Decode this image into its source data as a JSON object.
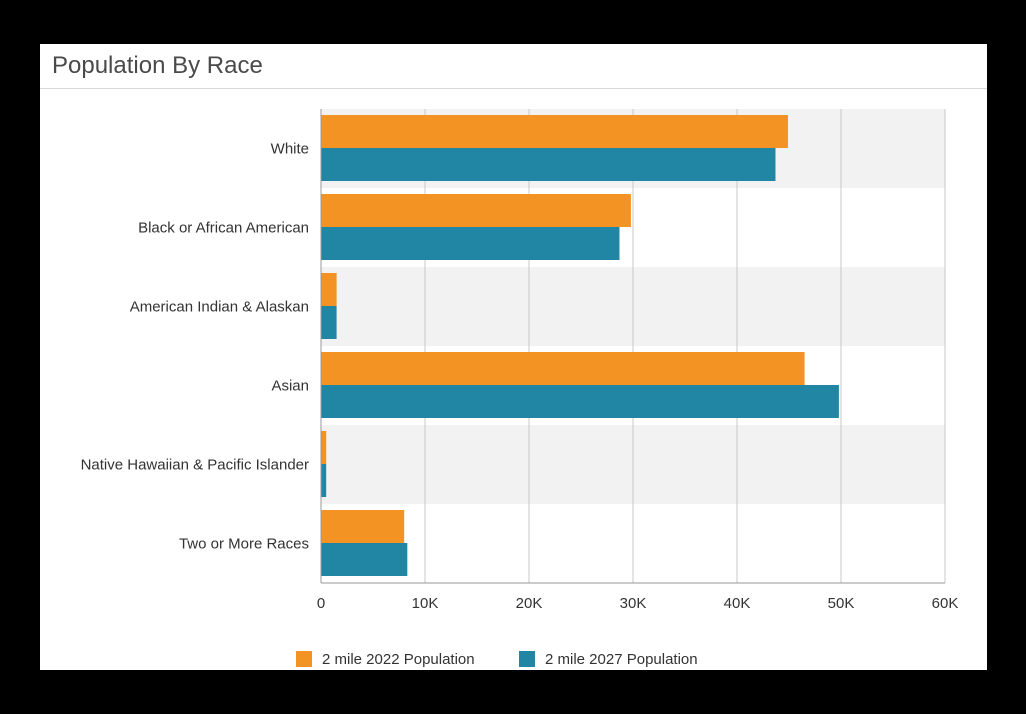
{
  "panel": {
    "title": "Population By Race"
  },
  "colors": {
    "series_2022": "#f39324",
    "series_2027": "#2186a4",
    "band": "#f2f2f2",
    "grid": "#c8c8c8",
    "axis": "#999999"
  },
  "chart_data": {
    "type": "bar",
    "orientation": "horizontal",
    "categories": [
      "White",
      "Black or African American",
      "American Indian & Alaskan",
      "Asian",
      "Native Hawaiian & Pacific Islander",
      "Two or More Races"
    ],
    "series": [
      {
        "name": "2 mile 2022 Population",
        "values": [
          44900,
          29800,
          1500,
          46500,
          500,
          8000
        ]
      },
      {
        "name": "2 mile 2027 Population",
        "values": [
          43700,
          28700,
          1500,
          49800,
          500,
          8300
        ]
      }
    ],
    "xlim": [
      0,
      60000
    ],
    "ticks": [
      0,
      10000,
      20000,
      30000,
      40000,
      50000,
      60000
    ],
    "tick_labels": [
      "0",
      "10K",
      "20K",
      "30K",
      "40K",
      "50K",
      "60K"
    ],
    "grid": true,
    "legend": "bottom-center"
  }
}
